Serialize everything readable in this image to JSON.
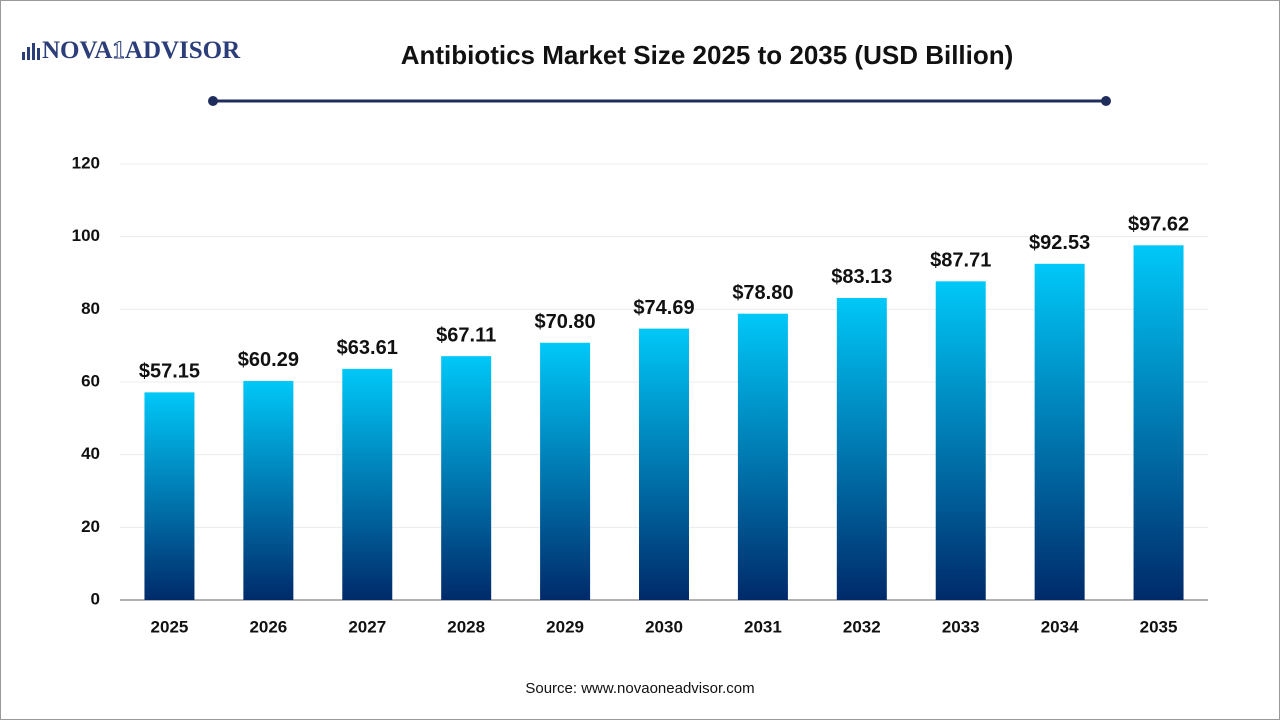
{
  "logo": [
    "NOVA",
    "1",
    "ADVISOR"
  ],
  "chart_data": {
    "type": "bar",
    "title": "Antibiotics Market Size 2025 to 2035 (USD Billion)",
    "categories": [
      "2025",
      "2026",
      "2027",
      "2028",
      "2029",
      "2030",
      "2031",
      "2032",
      "2033",
      "2034",
      "2035"
    ],
    "values": [
      57.15,
      60.29,
      63.61,
      67.11,
      70.8,
      74.69,
      78.8,
      83.13,
      87.71,
      92.53,
      97.62
    ],
    "value_labels": [
      "$57.15",
      "$60.29",
      "$63.61",
      "$67.11",
      "$70.80",
      "$74.69",
      "$78.80",
      "$83.13",
      "$87.71",
      "$92.53",
      "$97.62"
    ],
    "color": [
      "#00c8f8",
      "#002a6a"
    ],
    "ylim": [
      0,
      120
    ],
    "yticks": [
      0,
      20,
      40,
      60,
      80,
      100,
      120
    ],
    "grid": true,
    "source": "Source: www.novaoneadvisor.com"
  }
}
